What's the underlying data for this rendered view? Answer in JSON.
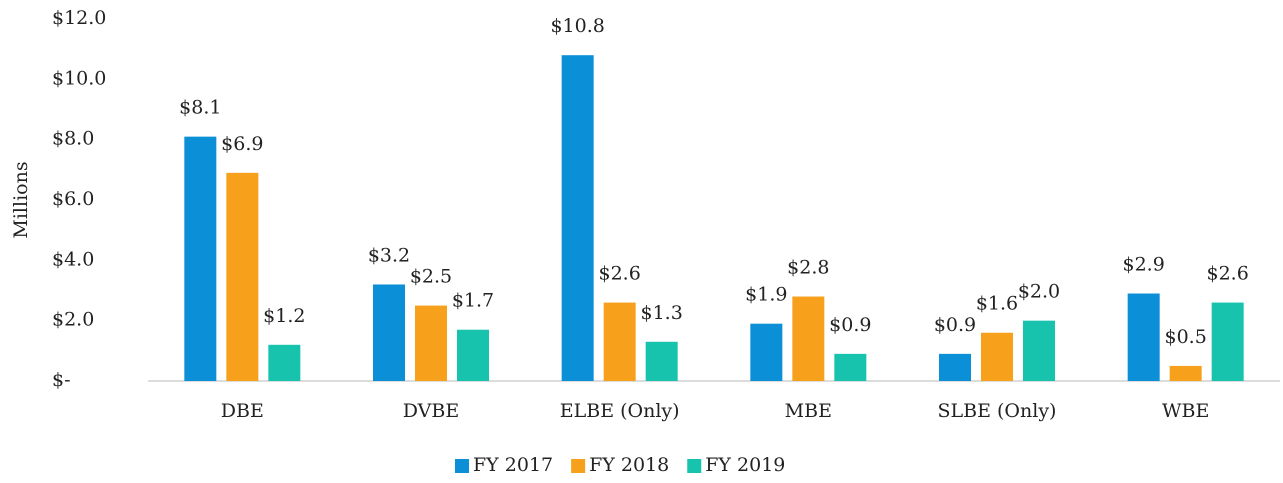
{
  "chart_data": {
    "type": "bar",
    "y_label": "Millions",
    "categories": [
      "DBE",
      "DVBE",
      "ELBE (Only)",
      "MBE",
      "SLBE (Only)",
      "WBE"
    ],
    "series": [
      {
        "name": "FY 2017",
        "color": "#0b8fd6",
        "values": [
          8.1,
          3.2,
          10.8,
          1.9,
          0.9,
          2.9
        ],
        "value_labels": [
          "$8.1",
          "$3.2",
          "$10.8",
          "$1.9",
          "$0.9",
          "$2.9"
        ]
      },
      {
        "name": "FY 2018",
        "color": "#f7a01c",
        "values": [
          6.9,
          2.5,
          2.6,
          2.8,
          1.6,
          0.5
        ],
        "value_labels": [
          "$6.9",
          "$2.5",
          "$2.6",
          "$2.8",
          "$1.6",
          "$0.5"
        ]
      },
      {
        "name": "FY 2019",
        "color": "#17c3ad",
        "values": [
          1.2,
          1.7,
          1.3,
          0.9,
          2.0,
          2.6
        ],
        "value_labels": [
          "$1.2",
          "$1.7",
          "$1.3",
          "$0.9",
          "$2.0",
          "$2.6"
        ]
      }
    ],
    "ylim": [
      0,
      12
    ],
    "yticks": [
      {
        "value": 0,
        "label": "$-"
      },
      {
        "value": 2,
        "label": "$2.0"
      },
      {
        "value": 4,
        "label": "$4.0"
      },
      {
        "value": 6,
        "label": "$6.0"
      },
      {
        "value": 8,
        "label": "$8.0"
      },
      {
        "value": 10,
        "label": "$10.0"
      },
      {
        "value": 12,
        "label": "$12.0"
      }
    ],
    "grid": false,
    "legend": "bottom"
  }
}
